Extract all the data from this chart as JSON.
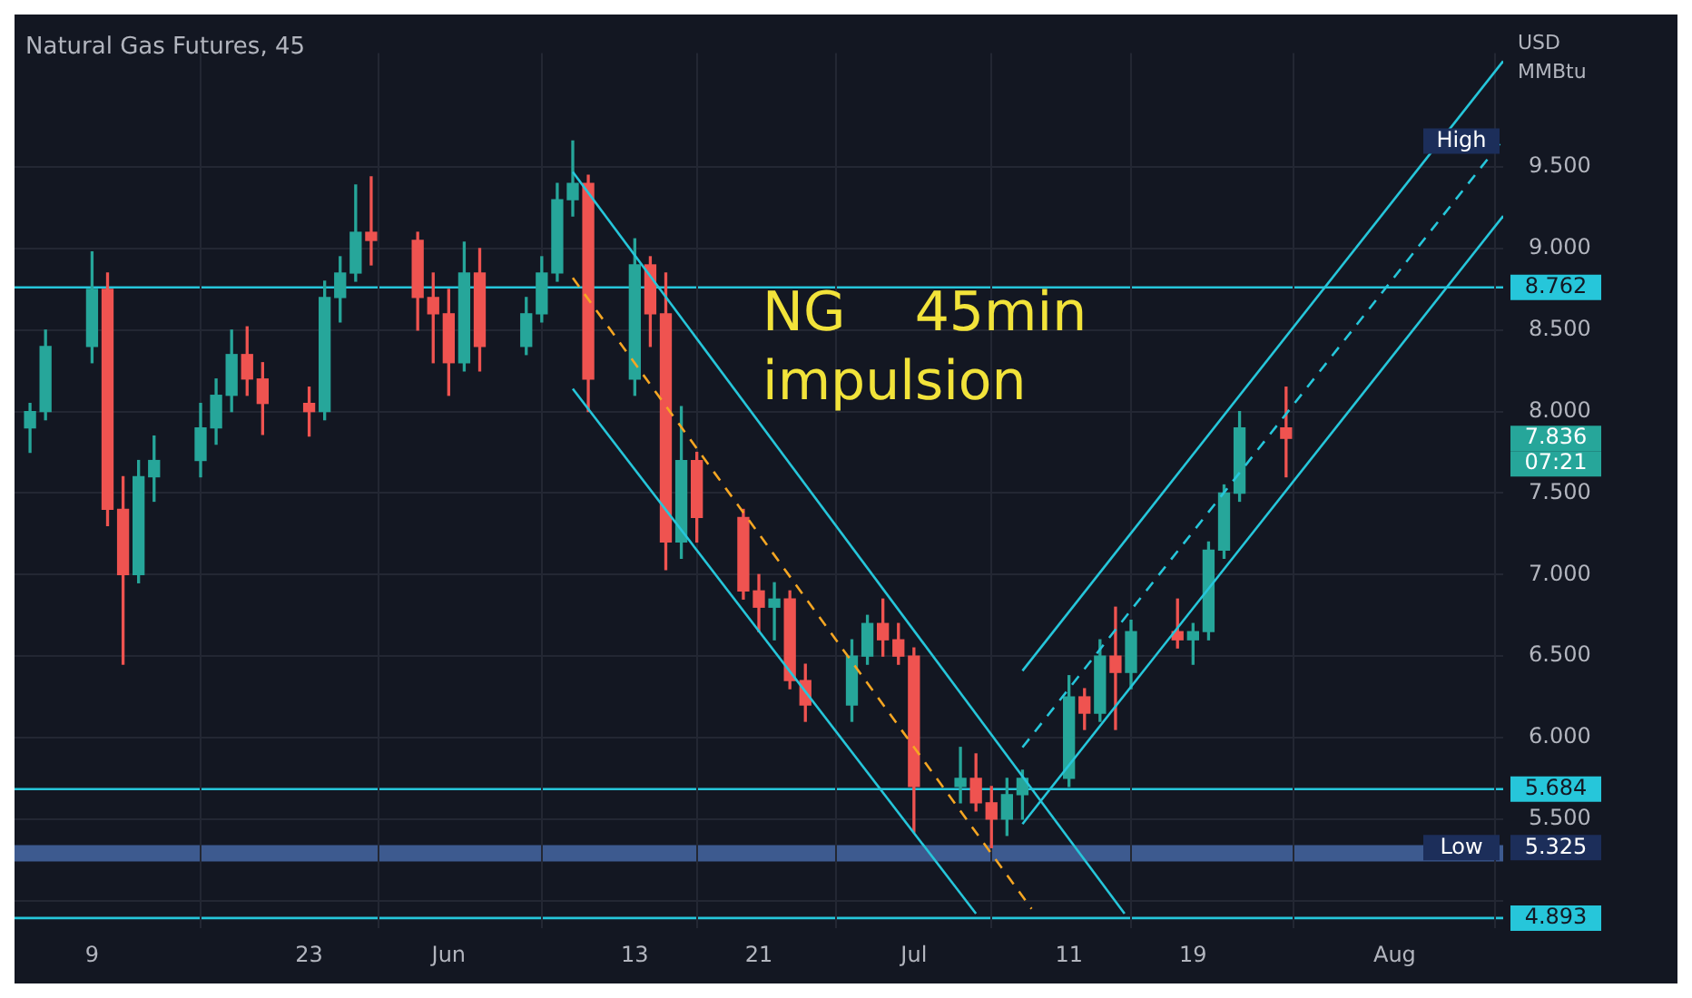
{
  "chart_data": {
    "type": "candlestick",
    "title": "Natural Gas Futures, 45",
    "ylabel": "USD MMBtu",
    "x": [
      "--05-05",
      "--05-06",
      "--05-09",
      "--05-10",
      "--05-11",
      "--05-12",
      "--05-13",
      "--05-16",
      "--05-17",
      "--05-18",
      "--05-19",
      "--05-20",
      "--05-23",
      "--05-24",
      "--05-25",
      "--05-26",
      "--05-27",
      "--05-30",
      "--05-31",
      "--06-01",
      "--06-02",
      "--06-03",
      "--06-06",
      "--06-07",
      "--06-08",
      "--06-09",
      "--06-10",
      "--06-13",
      "--06-14",
      "--06-15",
      "--06-16",
      "--06-17",
      "--06-20",
      "--06-21",
      "--06-22",
      "--06-23",
      "--06-24",
      "--06-27",
      "--06-28",
      "--06-29",
      "--06-30",
      "--07-01",
      "--07-04",
      "--07-05",
      "--07-06",
      "--07-07",
      "--07-08",
      "--07-11",
      "--07-12",
      "--07-13",
      "--07-14",
      "--07-15",
      "--07-18",
      "--07-19",
      "--07-20",
      "--07-21",
      "--07-22",
      "--07-25"
    ],
    "ohlc": [
      [
        7.9,
        8.05,
        7.75,
        8.0
      ],
      [
        8.0,
        8.5,
        7.95,
        8.4
      ],
      [
        8.4,
        8.98,
        8.3,
        8.75
      ],
      [
        8.75,
        8.85,
        7.3,
        7.4
      ],
      [
        7.4,
        7.6,
        6.45,
        7.0
      ],
      [
        7.0,
        7.7,
        6.95,
        7.6
      ],
      [
        7.6,
        7.85,
        7.45,
        7.7
      ],
      [
        7.7,
        8.05,
        7.6,
        7.9
      ],
      [
        7.9,
        8.2,
        7.8,
        8.1
      ],
      [
        8.1,
        8.5,
        8.0,
        8.35
      ],
      [
        8.35,
        8.52,
        8.1,
        8.2
      ],
      [
        8.2,
        8.3,
        7.86,
        8.05
      ],
      [
        8.05,
        8.15,
        7.85,
        8.0
      ],
      [
        8.0,
        8.8,
        7.95,
        8.7
      ],
      [
        8.7,
        8.95,
        8.55,
        8.85
      ],
      [
        8.85,
        9.39,
        8.8,
        9.1
      ],
      [
        9.1,
        9.44,
        8.9,
        9.05
      ],
      [
        9.05,
        9.1,
        8.5,
        8.7
      ],
      [
        8.7,
        8.85,
        8.3,
        8.6
      ],
      [
        8.6,
        8.75,
        8.1,
        8.3
      ],
      [
        8.3,
        9.04,
        8.25,
        8.85
      ],
      [
        8.85,
        9.0,
        8.25,
        8.4
      ],
      [
        8.4,
        8.7,
        8.35,
        8.6
      ],
      [
        8.6,
        8.95,
        8.55,
        8.85
      ],
      [
        8.85,
        9.4,
        8.8,
        9.3
      ],
      [
        9.3,
        9.66,
        9.2,
        9.4
      ],
      [
        9.4,
        9.45,
        8.0,
        8.2
      ],
      [
        8.2,
        9.06,
        8.1,
        8.9
      ],
      [
        8.9,
        8.95,
        8.4,
        8.6
      ],
      [
        8.6,
        8.85,
        7.03,
        7.2
      ],
      [
        7.2,
        8.03,
        7.1,
        7.7
      ],
      [
        7.7,
        7.75,
        7.2,
        7.35
      ],
      [
        7.35,
        7.4,
        6.85,
        6.9
      ],
      [
        6.9,
        7.0,
        6.65,
        6.8
      ],
      [
        6.8,
        6.95,
        6.6,
        6.85
      ],
      [
        6.85,
        6.9,
        6.3,
        6.35
      ],
      [
        6.35,
        6.45,
        6.1,
        6.2
      ],
      [
        6.2,
        6.6,
        6.1,
        6.5
      ],
      [
        6.5,
        6.75,
        6.45,
        6.7
      ],
      [
        6.7,
        6.85,
        6.5,
        6.6
      ],
      [
        6.6,
        6.7,
        6.45,
        6.5
      ],
      [
        6.5,
        6.55,
        5.42,
        5.7
      ],
      [
        5.7,
        5.94,
        5.6,
        5.75
      ],
      [
        5.75,
        5.9,
        5.55,
        5.6
      ],
      [
        5.6,
        5.7,
        5.325,
        5.5
      ],
      [
        5.5,
        5.75,
        5.4,
        5.65
      ],
      [
        5.65,
        5.8,
        5.5,
        5.75
      ],
      [
        5.75,
        6.38,
        5.7,
        6.25
      ],
      [
        6.25,
        6.3,
        6.05,
        6.15
      ],
      [
        6.15,
        6.6,
        6.1,
        6.5
      ],
      [
        6.5,
        6.8,
        6.05,
        6.4
      ],
      [
        6.4,
        6.72,
        6.3,
        6.65
      ],
      [
        6.65,
        6.85,
        6.55,
        6.6
      ],
      [
        6.6,
        6.7,
        6.45,
        6.65
      ],
      [
        6.65,
        7.2,
        6.6,
        7.15
      ],
      [
        7.15,
        7.55,
        7.1,
        7.5
      ],
      [
        7.5,
        8.0,
        7.45,
        7.9
      ],
      [
        7.9,
        8.15,
        7.6,
        7.836
      ]
    ],
    "series": [
      {
        "type": "line",
        "color": "#26c6da",
        "x": [
          "--06-09",
          "--07-14T14:00"
        ],
        "values": [
          9.47,
          4.92
        ]
      },
      {
        "type": "line",
        "color": "#26c6da",
        "x": [
          "--06-09",
          "--07-05"
        ],
        "values": [
          8.14,
          4.92
        ]
      },
      {
        "type": "line",
        "color": "#f5a623",
        "line_style": "dashed",
        "x": [
          "--06-09",
          "--07-08T14:00"
        ],
        "values": [
          8.82,
          4.95
        ]
      },
      {
        "type": "line",
        "color": "#26c6da",
        "x": [
          "--07-08",
          "--08-08"
        ],
        "values": [
          6.41,
          10.15
        ]
      },
      {
        "type": "line",
        "color": "#26c6da",
        "x": [
          "--07-08",
          "--08-08"
        ],
        "values": [
          5.47,
          9.2
        ]
      },
      {
        "type": "line",
        "color": "#26c6da",
        "line_style": "dashed",
        "x": [
          "--07-08",
          "--08-08"
        ],
        "values": [
          5.94,
          9.67
        ]
      }
    ],
    "xlim": [
      "--05-04",
      "--08-08"
    ],
    "xticks": [
      {
        "value": "--05-09",
        "label": "9"
      },
      {
        "value": "--05-23",
        "label": "23"
      },
      {
        "value": "--06-01",
        "label": "Jun"
      },
      {
        "value": "--06-13",
        "label": "13"
      },
      {
        "value": "--06-21",
        "label": "21"
      },
      {
        "value": "--07-01",
        "label": "Jul"
      },
      {
        "value": "--07-11",
        "label": "11"
      },
      {
        "value": "--07-19",
        "label": "19"
      },
      {
        "value": "--08-01",
        "label": "Aug"
      }
    ],
    "ylim": [
      4.83,
      10.2
    ],
    "yticks": [
      {
        "value": 5,
        "label": null
      },
      {
        "value": 5.5,
        "label": "5.500"
      },
      {
        "value": 6,
        "label": "6.000"
      },
      {
        "value": 6.5,
        "label": "6.500"
      },
      {
        "value": 7,
        "label": "7.000"
      },
      {
        "value": 7.5,
        "label": "7.500"
      },
      {
        "value": 8,
        "label": "8.000"
      },
      {
        "value": 8.5,
        "label": "8.500"
      },
      {
        "value": 9,
        "label": "9.000"
      },
      {
        "value": 9.5,
        "label": "9.500"
      }
    ],
    "ref_lines": [
      {
        "axis": "y",
        "value": 8.762,
        "label": "8.762",
        "color": "#26c6da"
      },
      {
        "axis": "y",
        "value": 5.684,
        "label": "5.684",
        "color": "#26c6da"
      },
      {
        "axis": "y",
        "value": 4.893,
        "label": "4.893",
        "color": "#26c6da"
      }
    ],
    "bands": [
      {
        "axis": "y",
        "from": 5.24,
        "to": 5.34,
        "color": "#3d5a8f"
      }
    ],
    "annotations": [
      "NG    45min\nimpulsion",
      {
        "text": "High",
        "y": 9.66
      },
      "7.836",
      "07:21",
      {
        "text": "Low",
        "y": 5.325
      },
      "5.325"
    ],
    "grid": true,
    "legend": false,
    "marker": "none",
    "line_style": "solid"
  }
}
